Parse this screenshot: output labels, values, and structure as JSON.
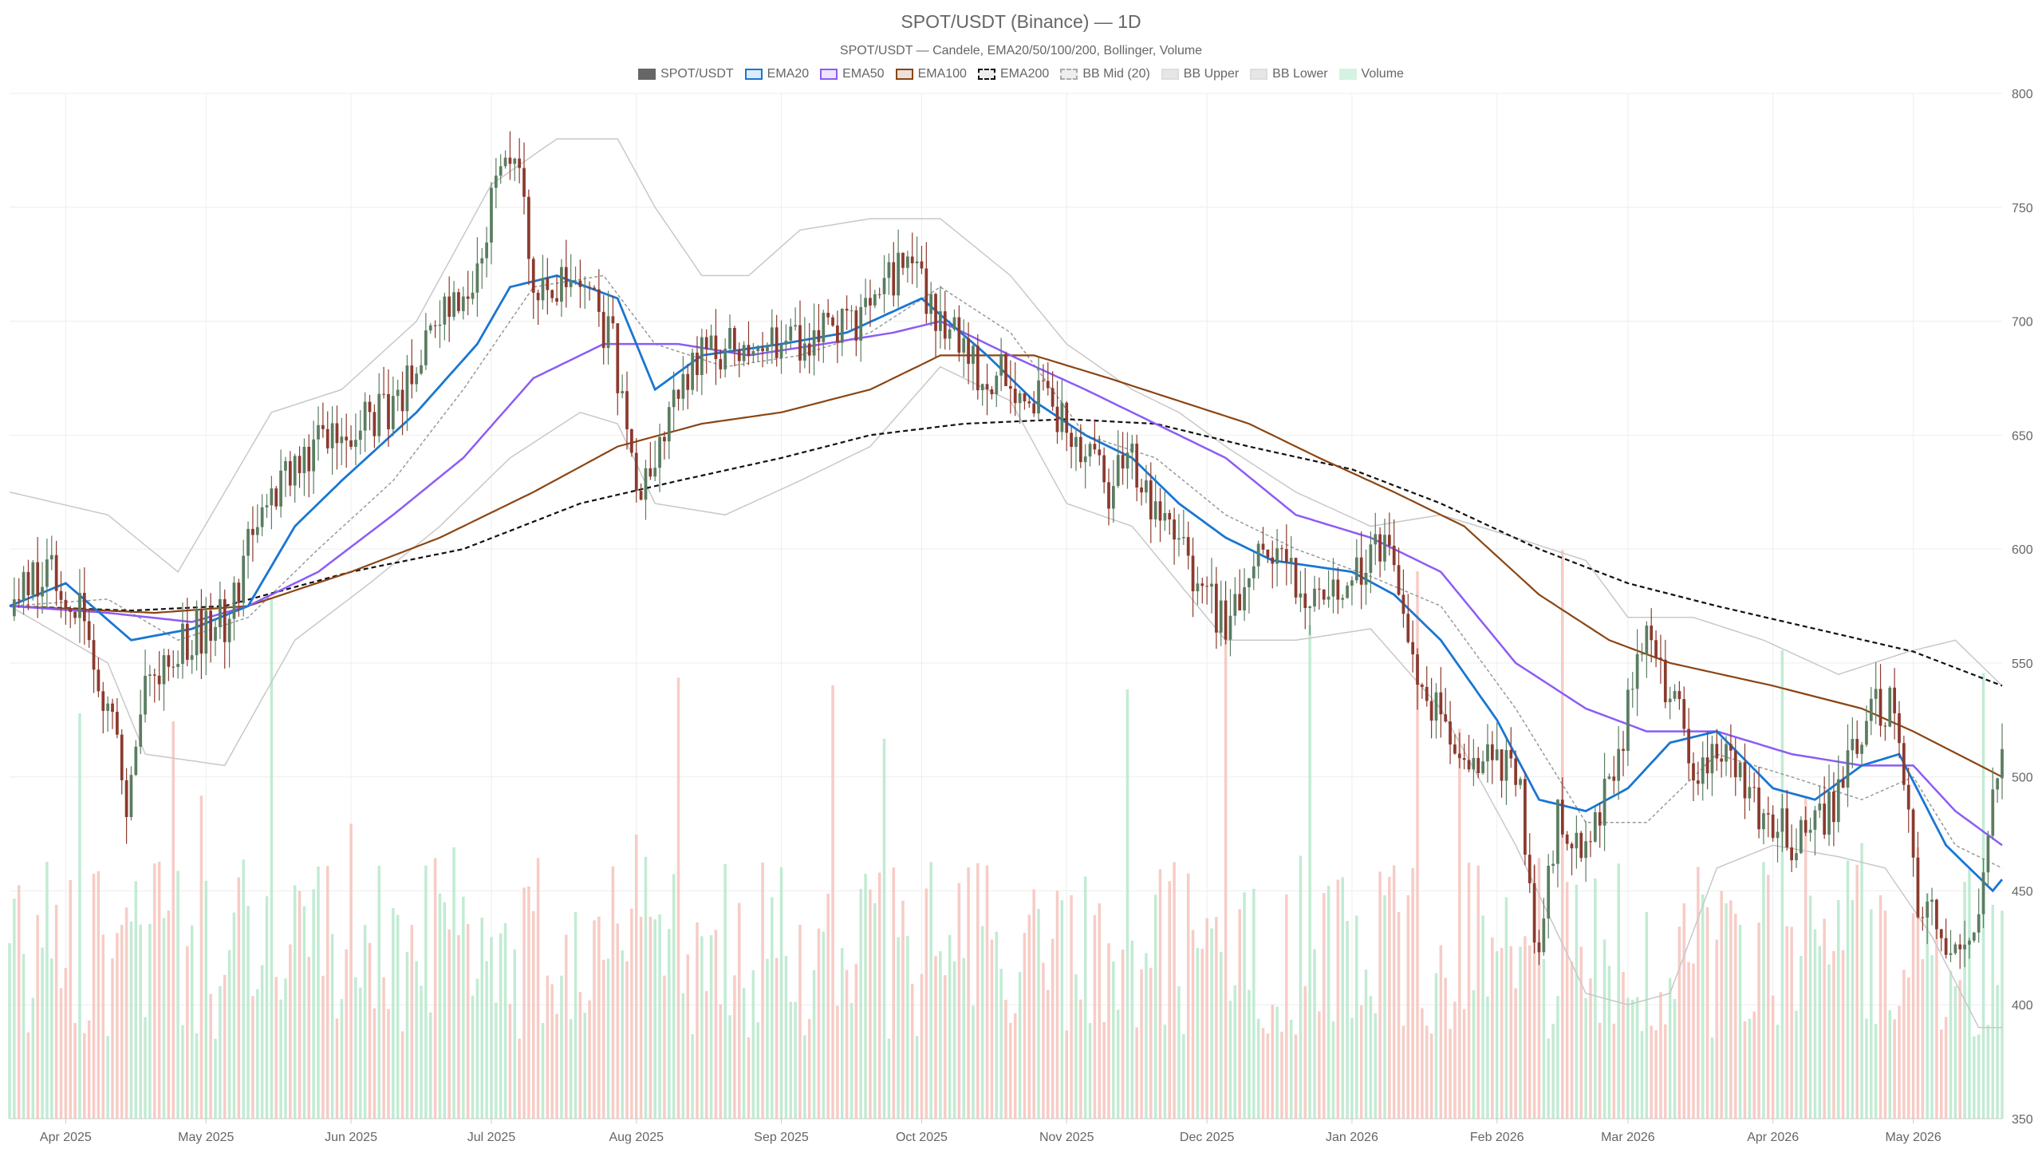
{
  "chart_data": {
    "type": "candlestick",
    "title": "SPOT/USDT (Binance) — 1D",
    "subtitle": "SPOT/USDT — Candele, EMA20/50/100/200, Bollinger, Volume",
    "ylim": [
      350,
      800
    ],
    "y_ticks": [
      350,
      400,
      450,
      500,
      550,
      600,
      650,
      700,
      750,
      800
    ],
    "x_ticks": [
      "Apr 2025",
      "May 2025",
      "Jun 2025",
      "Jul 2025",
      "Aug 2025",
      "Sep 2025",
      "Oct 2025",
      "Nov 2025",
      "Dec 2025",
      "Jan 2026",
      "Feb 2026",
      "Mar 2026",
      "Apr 2026",
      "May 2026"
    ],
    "date_range": [
      "2025-03-20",
      "2026-05-20"
    ],
    "grid": true,
    "legend_position": "top-center",
    "legend": [
      {
        "name": "SPOT/USDT",
        "color": "#666666",
        "fill": "#666666",
        "style": "solid"
      },
      {
        "name": "EMA20",
        "color": "#1976d2",
        "fill": "#dcecf8",
        "style": "solid"
      },
      {
        "name": "EMA50",
        "color": "#8b5cf6",
        "fill": "#ede5fd",
        "style": "solid"
      },
      {
        "name": "EMA100",
        "color": "#8b4513",
        "fill": "#ece2da",
        "style": "solid"
      },
      {
        "name": "EMA200",
        "color": "#111111",
        "fill": "#eeeeee",
        "style": "dashed"
      },
      {
        "name": "BB Mid (20)",
        "color": "#aaaaaa",
        "fill": "#eeeeee",
        "style": "dashed"
      },
      {
        "name": "BB Upper",
        "color": "#dddddd",
        "fill": "#e6e6e6",
        "style": "solid"
      },
      {
        "name": "BB Lower",
        "color": "#dddddd",
        "fill": "#e6e6e6",
        "style": "solid"
      },
      {
        "name": "Volume",
        "color": "#d5f3e0",
        "fill": "#d5f3e0",
        "style": "solid"
      }
    ],
    "colors": {
      "up": "#5a7d61",
      "down": "#8b3a2e",
      "volume_up": "#b7e8cb",
      "volume_down": "#f6c3bc"
    },
    "anchors": {
      "close": [
        [
          "2025-03-20",
          575
        ],
        [
          "2025-03-28",
          590
        ],
        [
          "2025-04-05",
          568
        ],
        [
          "2025-04-10",
          530
        ],
        [
          "2025-04-14",
          490
        ],
        [
          "2025-04-18",
          540
        ],
        [
          "2025-04-25",
          560
        ],
        [
          "2025-05-05",
          570
        ],
        [
          "2025-05-12",
          610
        ],
        [
          "2025-05-20",
          640
        ],
        [
          "2025-05-30",
          650
        ],
        [
          "2025-06-10",
          660
        ],
        [
          "2025-06-20",
          700
        ],
        [
          "2025-06-28",
          715
        ],
        [
          "2025-07-02",
          765
        ],
        [
          "2025-07-06",
          775
        ],
        [
          "2025-07-10",
          720
        ],
        [
          "2025-07-20",
          715
        ],
        [
          "2025-07-27",
          690
        ],
        [
          "2025-08-02",
          620
        ],
        [
          "2025-08-08",
          655
        ],
        [
          "2025-08-15",
          685
        ],
        [
          "2025-08-20",
          690
        ],
        [
          "2025-09-01",
          690
        ],
        [
          "2025-09-10",
          695
        ],
        [
          "2025-09-20",
          705
        ],
        [
          "2025-09-28",
          730
        ],
        [
          "2025-10-05",
          700
        ],
        [
          "2025-10-12",
          680
        ],
        [
          "2025-10-20",
          675
        ],
        [
          "2025-11-01",
          655
        ],
        [
          "2025-11-10",
          625
        ],
        [
          "2025-11-15",
          640
        ],
        [
          "2025-11-25",
          600
        ],
        [
          "2025-12-05",
          565
        ],
        [
          "2025-12-12",
          600
        ],
        [
          "2025-12-20",
          585
        ],
        [
          "2025-12-30",
          585
        ],
        [
          "2026-01-08",
          600
        ],
        [
          "2026-01-15",
          545
        ],
        [
          "2026-01-25",
          510
        ],
        [
          "2026-02-02",
          505
        ],
        [
          "2026-02-06",
          490
        ],
        [
          "2026-02-10",
          420
        ],
        [
          "2026-02-14",
          480
        ],
        [
          "2026-02-20",
          465
        ],
        [
          "2026-02-28",
          520
        ],
        [
          "2026-03-04",
          560
        ],
        [
          "2026-03-10",
          540
        ],
        [
          "2026-03-15",
          505
        ],
        [
          "2026-03-20",
          515
        ],
        [
          "2026-03-26",
          495
        ],
        [
          "2026-04-01",
          480
        ],
        [
          "2026-04-08",
          470
        ],
        [
          "2026-04-15",
          490
        ],
        [
          "2026-04-22",
          535
        ],
        [
          "2026-04-28",
          525
        ],
        [
          "2026-05-02",
          445
        ],
        [
          "2026-05-08",
          430
        ],
        [
          "2026-05-14",
          435
        ],
        [
          "2026-05-18",
          495
        ],
        [
          "2026-05-20",
          520
        ]
      ],
      "ema20": [
        [
          "2025-03-20",
          575
        ],
        [
          "2025-04-01",
          585
        ],
        [
          "2025-04-15",
          560
        ],
        [
          "2025-04-28",
          565
        ],
        [
          "2025-05-10",
          575
        ],
        [
          "2025-05-20",
          610
        ],
        [
          "2025-05-30",
          630
        ],
        [
          "2025-06-15",
          660
        ],
        [
          "2025-06-28",
          690
        ],
        [
          "2025-07-05",
          715
        ],
        [
          "2025-07-15",
          720
        ],
        [
          "2025-07-28",
          710
        ],
        [
          "2025-08-05",
          670
        ],
        [
          "2025-08-15",
          685
        ],
        [
          "2025-09-01",
          690
        ],
        [
          "2025-09-15",
          695
        ],
        [
          "2025-10-01",
          710
        ],
        [
          "2025-10-15",
          685
        ],
        [
          "2025-10-25",
          665
        ],
        [
          "2025-11-05",
          650
        ],
        [
          "2025-11-15",
          640
        ],
        [
          "2025-11-25",
          620
        ],
        [
          "2025-12-05",
          605
        ],
        [
          "2025-12-15",
          595
        ],
        [
          "2026-01-01",
          590
        ],
        [
          "2026-01-10",
          580
        ],
        [
          "2026-01-20",
          560
        ],
        [
          "2026-02-01",
          525
        ],
        [
          "2026-02-10",
          490
        ],
        [
          "2026-02-20",
          485
        ],
        [
          "2026-03-01",
          495
        ],
        [
          "2026-03-10",
          515
        ],
        [
          "2026-03-20",
          520
        ],
        [
          "2026-04-01",
          495
        ],
        [
          "2026-04-10",
          490
        ],
        [
          "2026-04-20",
          505
        ],
        [
          "2026-04-28",
          510
        ],
        [
          "2026-05-08",
          470
        ],
        [
          "2026-05-18",
          450
        ],
        [
          "2026-05-20",
          455
        ]
      ],
      "ema50": [
        [
          "2025-03-20",
          575
        ],
        [
          "2025-04-10",
          572
        ],
        [
          "2025-04-28",
          568
        ],
        [
          "2025-05-10",
          575
        ],
        [
          "2025-05-25",
          590
        ],
        [
          "2025-06-10",
          615
        ],
        [
          "2025-06-25",
          640
        ],
        [
          "2025-07-10",
          675
        ],
        [
          "2025-07-25",
          690
        ],
        [
          "2025-08-10",
          690
        ],
        [
          "2025-08-25",
          685
        ],
        [
          "2025-09-10",
          690
        ],
        [
          "2025-09-25",
          695
        ],
        [
          "2025-10-05",
          700
        ],
        [
          "2025-10-20",
          685
        ],
        [
          "2025-11-05",
          670
        ],
        [
          "2025-11-20",
          655
        ],
        [
          "2025-12-05",
          640
        ],
        [
          "2025-12-20",
          615
        ],
        [
          "2026-01-05",
          605
        ],
        [
          "2026-01-20",
          590
        ],
        [
          "2026-02-05",
          550
        ],
        [
          "2026-02-20",
          530
        ],
        [
          "2026-03-05",
          520
        ],
        [
          "2026-03-20",
          520
        ],
        [
          "2026-04-05",
          510
        ],
        [
          "2026-04-20",
          505
        ],
        [
          "2026-05-01",
          505
        ],
        [
          "2026-05-10",
          485
        ],
        [
          "2026-05-20",
          470
        ]
      ],
      "ema100": [
        [
          "2025-03-20",
          575
        ],
        [
          "2025-04-20",
          572
        ],
        [
          "2025-05-10",
          575
        ],
        [
          "2025-06-01",
          590
        ],
        [
          "2025-06-20",
          605
        ],
        [
          "2025-07-10",
          625
        ],
        [
          "2025-07-28",
          645
        ],
        [
          "2025-08-15",
          655
        ],
        [
          "2025-09-01",
          660
        ],
        [
          "2025-09-20",
          670
        ],
        [
          "2025-10-05",
          685
        ],
        [
          "2025-10-25",
          685
        ],
        [
          "2025-11-10",
          675
        ],
        [
          "2025-11-25",
          665
        ],
        [
          "2025-12-10",
          655
        ],
        [
          "2025-12-25",
          640
        ],
        [
          "2026-01-10",
          625
        ],
        [
          "2026-01-25",
          610
        ],
        [
          "2026-02-10",
          580
        ],
        [
          "2026-02-25",
          560
        ],
        [
          "2026-03-10",
          550
        ],
        [
          "2026-04-01",
          540
        ],
        [
          "2026-04-20",
          530
        ],
        [
          "2026-05-01",
          520
        ],
        [
          "2026-05-20",
          500
        ]
      ],
      "ema200": [
        [
          "2025-03-20",
          575
        ],
        [
          "2025-04-15",
          573
        ],
        [
          "2025-05-05",
          575
        ],
        [
          "2025-06-01",
          590
        ],
        [
          "2025-06-25",
          600
        ],
        [
          "2025-07-20",
          620
        ],
        [
          "2025-08-10",
          630
        ],
        [
          "2025-09-01",
          640
        ],
        [
          "2025-09-20",
          650
        ],
        [
          "2025-10-10",
          655
        ],
        [
          "2025-11-01",
          657
        ],
        [
          "2025-11-20",
          655
        ],
        [
          "2025-12-10",
          645
        ],
        [
          "2026-01-01",
          635
        ],
        [
          "2026-01-20",
          620
        ],
        [
          "2026-02-10",
          600
        ],
        [
          "2026-03-01",
          585
        ],
        [
          "2026-03-20",
          575
        ],
        [
          "2026-04-10",
          565
        ],
        [
          "2026-05-01",
          555
        ],
        [
          "2026-05-20",
          540
        ]
      ],
      "bb_mid": [
        [
          "2025-03-20",
          575
        ],
        [
          "2025-04-10",
          578
        ],
        [
          "2025-04-25",
          560
        ],
        [
          "2025-05-10",
          570
        ],
        [
          "2025-05-25",
          600
        ],
        [
          "2025-06-10",
          630
        ],
        [
          "2025-06-25",
          670
        ],
        [
          "2025-07-10",
          715
        ],
        [
          "2025-07-25",
          720
        ],
        [
          "2025-08-05",
          690
        ],
        [
          "2025-08-20",
          680
        ],
        [
          "2025-09-05",
          685
        ],
        [
          "2025-09-20",
          695
        ],
        [
          "2025-10-05",
          715
        ],
        [
          "2025-10-20",
          695
        ],
        [
          "2025-11-05",
          650
        ],
        [
          "2025-11-20",
          640
        ],
        [
          "2025-12-05",
          615
        ],
        [
          "2025-12-20",
          600
        ],
        [
          "2026-01-05",
          588
        ],
        [
          "2026-01-20",
          575
        ],
        [
          "2026-02-05",
          530
        ],
        [
          "2026-02-20",
          480
        ],
        [
          "2026-03-05",
          480
        ],
        [
          "2026-03-20",
          510
        ],
        [
          "2026-04-05",
          500
        ],
        [
          "2026-04-20",
          490
        ],
        [
          "2026-05-01",
          500
        ],
        [
          "2026-05-10",
          470
        ],
        [
          "2026-05-20",
          460
        ]
      ],
      "bb_upper": [
        [
          "2025-03-20",
          625
        ],
        [
          "2025-04-10",
          615
        ],
        [
          "2025-04-25",
          590
        ],
        [
          "2025-05-05",
          625
        ],
        [
          "2025-05-15",
          660
        ],
        [
          "2025-05-30",
          670
        ],
        [
          "2025-06-15",
          700
        ],
        [
          "2025-07-01",
          760
        ],
        [
          "2025-07-15",
          780
        ],
        [
          "2025-07-28",
          780
        ],
        [
          "2025-08-05",
          750
        ],
        [
          "2025-08-15",
          720
        ],
        [
          "2025-08-25",
          720
        ],
        [
          "2025-09-05",
          740
        ],
        [
          "2025-09-20",
          745
        ],
        [
          "2025-10-05",
          745
        ],
        [
          "2025-10-20",
          720
        ],
        [
          "2025-11-01",
          690
        ],
        [
          "2025-11-15",
          670
        ],
        [
          "2025-11-25",
          660
        ],
        [
          "2025-12-05",
          645
        ],
        [
          "2025-12-20",
          625
        ],
        [
          "2026-01-05",
          610
        ],
        [
          "2026-01-20",
          615
        ],
        [
          "2026-02-05",
          605
        ],
        [
          "2026-02-20",
          595
        ],
        [
          "2026-03-01",
          570
        ],
        [
          "2026-03-15",
          570
        ],
        [
          "2026-03-30",
          560
        ],
        [
          "2026-04-15",
          545
        ],
        [
          "2026-04-30",
          555
        ],
        [
          "2026-05-10",
          560
        ],
        [
          "2026-05-20",
          540
        ]
      ],
      "bb_lower": [
        [
          "2025-03-20",
          575
        ],
        [
          "2025-04-10",
          550
        ],
        [
          "2025-04-18",
          510
        ],
        [
          "2025-05-05",
          505
        ],
        [
          "2025-05-20",
          560
        ],
        [
          "2025-06-05",
          585
        ],
        [
          "2025-06-20",
          610
        ],
        [
          "2025-07-05",
          640
        ],
        [
          "2025-07-20",
          660
        ],
        [
          "2025-07-28",
          655
        ],
        [
          "2025-08-05",
          620
        ],
        [
          "2025-08-20",
          615
        ],
        [
          "2025-09-05",
          630
        ],
        [
          "2025-09-20",
          645
        ],
        [
          "2025-10-05",
          680
        ],
        [
          "2025-10-20",
          665
        ],
        [
          "2025-11-01",
          620
        ],
        [
          "2025-11-15",
          610
        ],
        [
          "2025-12-05",
          560
        ],
        [
          "2025-12-20",
          560
        ],
        [
          "2026-01-05",
          565
        ],
        [
          "2026-01-20",
          530
        ],
        [
          "2026-02-05",
          470
        ],
        [
          "2026-02-20",
          405
        ],
        [
          "2026-03-01",
          400
        ],
        [
          "2026-03-10",
          405
        ],
        [
          "2026-03-20",
          460
        ],
        [
          "2026-04-01",
          470
        ],
        [
          "2026-04-15",
          465
        ],
        [
          "2026-04-25",
          460
        ],
        [
          "2026-05-05",
          430
        ],
        [
          "2026-05-15",
          390
        ],
        [
          "2026-05-20",
          390
        ]
      ]
    }
  }
}
